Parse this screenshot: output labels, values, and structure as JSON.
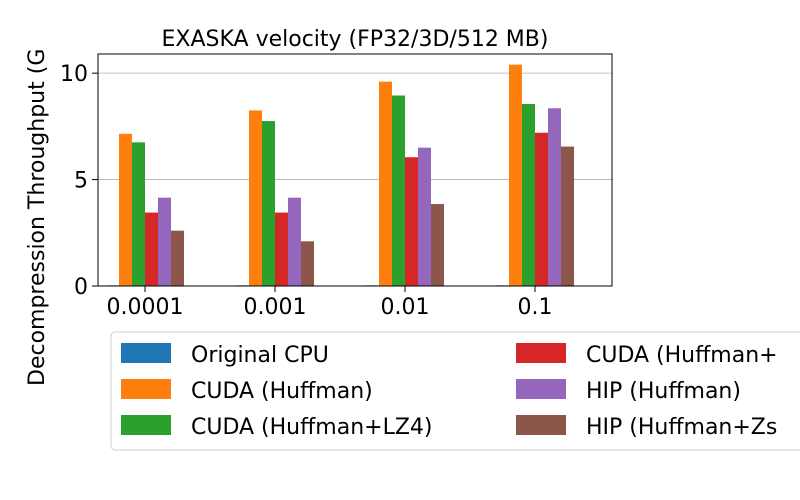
{
  "chart_data": {
    "type": "bar",
    "title": "EXASKA velocity (FP32/3D/512 MB)",
    "xlabel": "",
    "ylabel": "Decompression Throughput (G",
    "categories": [
      "0.0001",
      "0.001",
      "0.01",
      "0.1"
    ],
    "yticks": [
      "0",
      "5",
      "10"
    ],
    "ytick_values": [
      0,
      5,
      10
    ],
    "ylim": [
      0,
      10.9
    ],
    "grid": "horizontal",
    "legend_position": "bottom",
    "series": [
      {
        "name": "Original CPU",
        "color": "#1f77b4",
        "values": [
          0.03,
          0.03,
          0.03,
          0.03
        ]
      },
      {
        "name": "CUDA (Huffman)",
        "color": "#ff7f0e",
        "values": [
          7.15,
          8.25,
          9.6,
          10.4
        ]
      },
      {
        "name": "CUDA (Huffman+LZ4)",
        "color": "#2ca02c",
        "values": [
          6.75,
          7.75,
          8.95,
          8.55
        ]
      },
      {
        "name": "CUDA (Huffman+",
        "color": "#d62728",
        "values": [
          3.45,
          3.45,
          6.05,
          7.2
        ]
      },
      {
        "name": "HIP (Huffman)",
        "color": "#9467bd",
        "values": [
          4.15,
          4.15,
          6.5,
          8.35
        ]
      },
      {
        "name": "HIP (Huffman+Zs",
        "color": "#8c564b",
        "values": [
          2.6,
          2.1,
          3.85,
          6.55
        ]
      }
    ]
  }
}
